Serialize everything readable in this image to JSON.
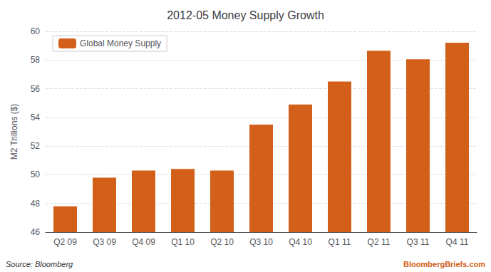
{
  "chart_data": {
    "type": "bar",
    "title": "2012-05 Money Supply Growth",
    "categories": [
      "Q2 09",
      "Q3 09",
      "Q4 09",
      "Q1 10",
      "Q2 10",
      "Q3 10",
      "Q4 10",
      "Q1 11",
      "Q2 11",
      "Q3 11",
      "Q4 11"
    ],
    "series": [
      {
        "name": "Global Money Supply",
        "color": "#D2601A",
        "values": [
          47.8,
          49.8,
          50.3,
          50.4,
          50.3,
          53.5,
          54.9,
          56.5,
          58.65,
          58.05,
          59.2
        ]
      }
    ],
    "ylabel": "M2 Trillions ($)",
    "ylim": [
      46,
      60
    ],
    "yticks": [
      46,
      48,
      50,
      52,
      54,
      56,
      58,
      60
    ],
    "grid": true,
    "legend": "upper left",
    "annotations": [
      {
        "text": "Source: Bloomberg"
      },
      {
        "text": "BloombergBriefs.com",
        "color": "#D2601A"
      }
    ]
  }
}
